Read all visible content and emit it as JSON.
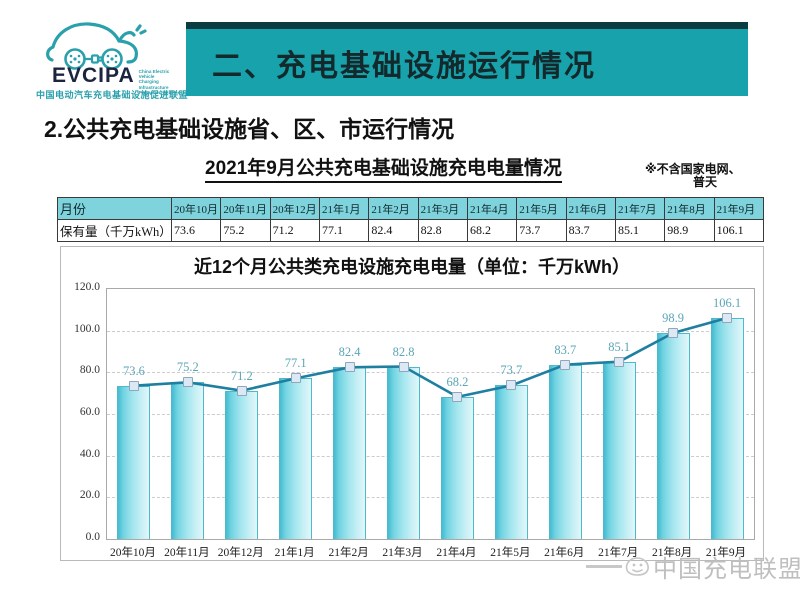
{
  "logo": {
    "acronym": "EVCIPA",
    "english_lines": [
      "China Electric Vehicle",
      "Charging Infrastructure",
      "Promotion Alliance"
    ],
    "chinese": "中国电动汽车充电基础设施促进联盟"
  },
  "banner": {
    "title": "二、充电基础设施运行情况"
  },
  "section": {
    "heading": "2.公共充电基础设施省、区、市运行情况"
  },
  "table_title": {
    "text": "2021年9月公共充电基础设施充电电量情况",
    "note_line1": "※不含国家电网、",
    "note_line2": "普天"
  },
  "table": {
    "header_label": "月份",
    "row_label": "保有量（千万kWh）",
    "months": [
      "20年10月",
      "20年11月",
      "20年12月",
      "21年1月",
      "21年2月",
      "21年3月",
      "21年4月",
      "21年5月",
      "21年6月",
      "21年7月",
      "21年8月",
      "21年9月"
    ],
    "values": [
      "73.6",
      "75.2",
      "71.2",
      "77.1",
      "82.4",
      "82.8",
      "68.2",
      "73.7",
      "83.7",
      "85.1",
      "98.9",
      "106.1"
    ]
  },
  "chart_data": {
    "type": "bar",
    "overlay_line": true,
    "title": "近12个月公共类充电设施充电电量（单位：千万kWh）",
    "categories": [
      "20年10月",
      "20年11月",
      "20年12月",
      "21年1月",
      "21年2月",
      "21年3月",
      "21年4月",
      "21年5月",
      "21年6月",
      "21年7月",
      "21年8月",
      "21年9月"
    ],
    "values": [
      73.6,
      75.2,
      71.2,
      77.1,
      82.4,
      82.8,
      68.2,
      73.7,
      83.7,
      85.1,
      98.9,
      106.1
    ],
    "xlabel": "",
    "ylabel": "",
    "ylim": [
      0,
      120
    ],
    "ytick_labels": [
      "0.0",
      "20.0",
      "40.0",
      "60.0",
      "80.0",
      "100.0",
      "120.0"
    ],
    "grid": "horizontal-dashed",
    "legend": "none",
    "data_labels": true
  },
  "watermark": {
    "text": "中国充电联盟"
  },
  "colors": {
    "banner_teal": "#17a2ac",
    "banner_dark": "#0a3c41",
    "table_header_bg": "#7fd3dd",
    "bar_fill": "#9fe4ed",
    "bar_edge": "#4fb9cc",
    "trend_line": "#1f7fa0",
    "marker_fill": "#dce8f3",
    "data_label": "#5ba6b6",
    "logo_teal": "#2aa0ac",
    "watermark_gray": "#bfbfbf"
  }
}
